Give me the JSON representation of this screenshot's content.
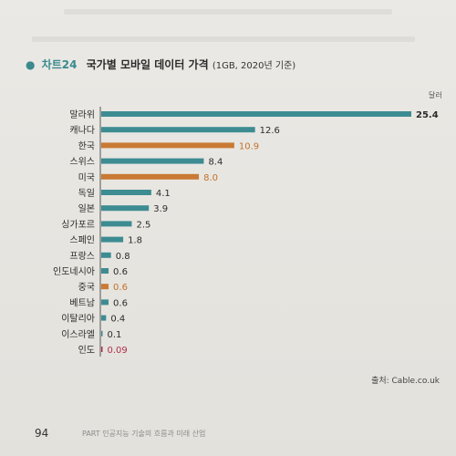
{
  "page": {
    "number": "94",
    "footer": "PART 인공지능 기술의 흐름과 미래 산업"
  },
  "chart_data": {
    "type": "bar",
    "orientation": "horizontal",
    "title_bullet": "●",
    "title_number": "차트24",
    "title": "국가별 모바일 데이터 가격",
    "subtitle": "(1GB, 2020년 기준)",
    "unit": "달러",
    "source": "출처: Cable.co.uk",
    "categories": [
      "말라위",
      "캐나다",
      "한국",
      "스위스",
      "미국",
      "독일",
      "일본",
      "싱가포르",
      "스페인",
      "프랑스",
      "인도네시아",
      "중국",
      "베트남",
      "이탈리아",
      "이스라엘",
      "인도"
    ],
    "values": [
      25.4,
      12.6,
      10.9,
      8.4,
      8.0,
      4.1,
      3.9,
      2.5,
      1.8,
      0.8,
      0.6,
      0.6,
      0.6,
      0.4,
      0.1,
      0.09
    ],
    "value_labels": [
      "25.4",
      "12.6",
      "10.9",
      "8.4",
      "8.0",
      "4.1",
      "3.9",
      "2.5",
      "1.8",
      "0.8",
      "0.6",
      "0.6",
      "0.6",
      "0.4",
      "0.1",
      "0.09"
    ],
    "highlight": [
      false,
      false,
      true,
      false,
      true,
      false,
      false,
      false,
      false,
      false,
      false,
      true,
      false,
      false,
      false,
      true
    ],
    "colors": {
      "default": "#3d8c92",
      "highlight": "#c97a34",
      "highlight_text": "#c2712a",
      "india_text": "#b0304a",
      "axis": "#555555"
    },
    "xlim": [
      0,
      25.4
    ],
    "grid": false,
    "legend": "none"
  }
}
